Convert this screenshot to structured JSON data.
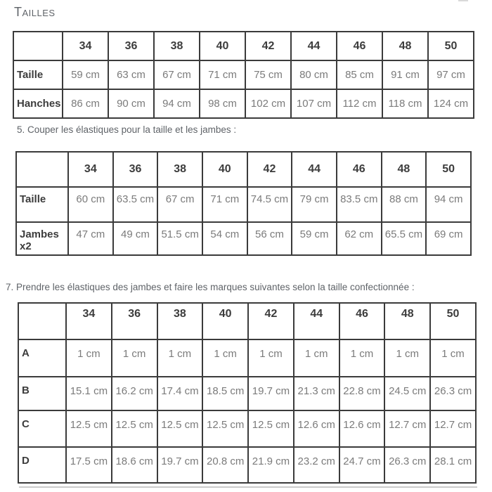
{
  "title": "Tailles",
  "instructions": {
    "step5": "5. Couper les élastiques pour la taille et les jambes :",
    "step7": "7. Prendre les élastiques des jambes et faire les marques suivantes selon la taille confectionnée :"
  },
  "colors": {
    "border": "#3b3b3b",
    "header_label_text": "#3c3c3c",
    "value_text": "#7b7b7b",
    "body_text": "#5f6368",
    "background": "#ffffff"
  },
  "tables": {
    "measurements": {
      "header": [
        "",
        "34",
        "36",
        "38",
        "40",
        "42",
        "44",
        "46",
        "48",
        "50"
      ],
      "rows": [
        {
          "label": "Taille",
          "values": [
            "59 cm",
            "63 cm",
            "67 cm",
            "71 cm",
            "75 cm",
            "80 cm",
            "85 cm",
            "91 cm",
            "97 cm"
          ]
        },
        {
          "label": "Hanches",
          "values": [
            "86 cm",
            "90 cm",
            "94 cm",
            "98 cm",
            "102 cm",
            "107 cm",
            "112 cm",
            "118 cm",
            "124 cm"
          ]
        }
      ]
    },
    "elastic_lengths": {
      "header": [
        "",
        "34",
        "36",
        "38",
        "40",
        "42",
        "44",
        "46",
        "48",
        "50"
      ],
      "rows": [
        {
          "label": "Taille",
          "values": [
            "60 cm",
            "63.5 cm",
            "67 cm",
            "71 cm",
            "74.5 cm",
            "79 cm",
            "83.5 cm",
            "88 cm",
            "94 cm"
          ]
        },
        {
          "label": "Jambes x2",
          "values": [
            "47 cm",
            "49 cm",
            "51.5 cm",
            "54 cm",
            "56 cm",
            "59 cm",
            "62 cm",
            "65.5 cm",
            "69 cm"
          ]
        }
      ]
    },
    "elastic_marks": {
      "header": [
        "",
        "34",
        "36",
        "38",
        "40",
        "42",
        "44",
        "46",
        "48",
        "50"
      ],
      "rows": [
        {
          "label": "A",
          "values": [
            "1 cm",
            "1 cm",
            "1 cm",
            "1 cm",
            "1 cm",
            "1 cm",
            "1 cm",
            "1 cm",
            "1 cm"
          ]
        },
        {
          "label": "B",
          "values": [
            "15.1 cm",
            "16.2 cm",
            "17.4 cm",
            "18.5 cm",
            "19.7 cm",
            "21.3 cm",
            "22.8 cm",
            "24.5 cm",
            "26.3 cm"
          ]
        },
        {
          "label": "C",
          "values": [
            "12.5 cm",
            "12.5 cm",
            "12.5 cm",
            "12.5 cm",
            "12.5 cm",
            "12.6 cm",
            "12.6 cm",
            "12.7 cm",
            "12.7 cm"
          ]
        },
        {
          "label": "D",
          "values": [
            "17.5 cm",
            "18.6 cm",
            "19.7 cm",
            "20.8 cm",
            "21.9 cm",
            "23.2 cm",
            "24.7 cm",
            "26.3 cm",
            "28.1 cm"
          ]
        }
      ]
    }
  }
}
